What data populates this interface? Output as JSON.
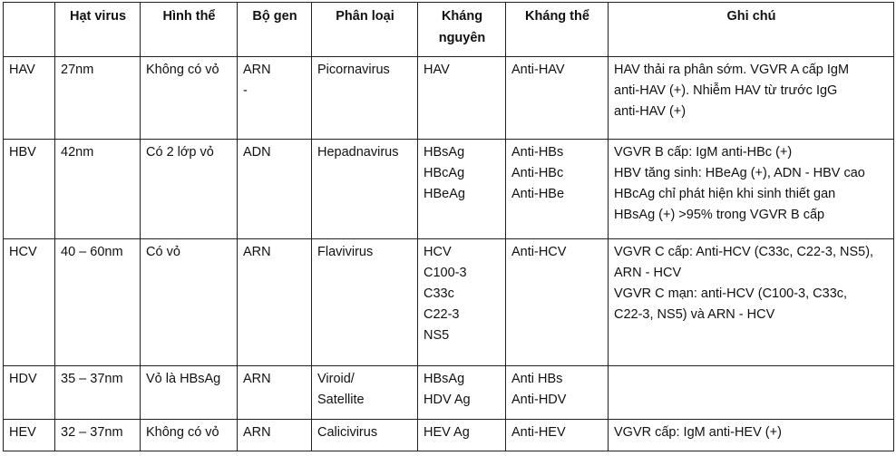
{
  "headers": [
    "",
    "Hạt virus",
    "Hình thể",
    "Bộ gen",
    "Phân loại",
    "Kháng nguyên",
    "Kháng thể",
    "Ghi chú"
  ],
  "rows": [
    {
      "name": "HAV",
      "size": "27nm",
      "shape": "Không có vỏ",
      "genome": [
        "ARN",
        "-"
      ],
      "classification": [
        "Picornavirus"
      ],
      "antigen": [
        "HAV"
      ],
      "antibody": [
        "Anti-HAV"
      ],
      "notes": [
        "HAV thải ra phân sớm. VGVR A cấp IgM",
        "anti-HAV (+). Nhiễm HAV từ trước IgG",
        "anti-HAV (+)"
      ]
    },
    {
      "name": "HBV",
      "size": "42nm",
      "shape": "Có 2 lớp vỏ",
      "genome": [
        "ADN"
      ],
      "classification": [
        "Hepadnavirus"
      ],
      "antigen": [
        "HBsAg",
        "HBcAg",
        "HBeAg"
      ],
      "antibody": [
        "Anti-HBs",
        "Anti-HBc",
        "Anti-HBe"
      ],
      "notes": [
        "VGVR B cấp: IgM anti-HBc (+)",
        "HBV tăng sinh: HBeAg (+), ADN - HBV cao",
        "HBcAg chỉ phát hiện khi sinh thiết gan",
        "HBsAg (+) >95% trong VGVR B cấp"
      ]
    },
    {
      "name": "HCV",
      "size": "40 – 60nm",
      "shape": "Có vỏ",
      "genome": [
        "ARN"
      ],
      "classification": [
        "Flavivirus"
      ],
      "antigen": [
        "HCV",
        "C100-3",
        "C33c",
        "C22-3",
        "NS5"
      ],
      "antibody": [
        "Anti-HCV"
      ],
      "notes": [
        "VGVR C cấp: Anti-HCV (C33c, C22-3, NS5),",
        "ARN - HCV",
        "VGVR C mạn: anti-HCV (C100-3, C33c,",
        "C22-3, NS5) và ARN - HCV"
      ]
    },
    {
      "name": "HDV",
      "size": "35 – 37nm",
      "shape": "Vỏ là HBsAg",
      "genome": [
        "ARN"
      ],
      "classification": [
        "Viroid/",
        "Satellite"
      ],
      "antigen": [
        "HBsAg",
        "HDV Ag"
      ],
      "antibody": [
        "Anti HBs",
        "Anti-HDV"
      ],
      "notes": []
    },
    {
      "name": "HEV",
      "size": "32 – 37nm",
      "shape": "Không có vỏ",
      "genome": [
        "ARN"
      ],
      "classification": [
        "Calicivirus"
      ],
      "antigen": [
        "HEV Ag"
      ],
      "antibody": [
        "Anti-HEV"
      ],
      "notes": [
        "VGVR cấp: IgM anti-HEV (+)"
      ]
    }
  ]
}
